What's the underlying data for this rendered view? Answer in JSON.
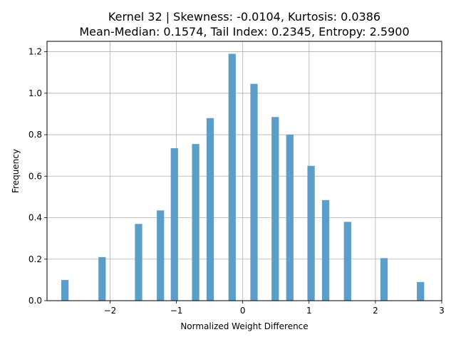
{
  "chart_data": {
    "type": "bar",
    "title": [
      "Kernel 32 | Skewness: -0.0104, Kurtosis: 0.0386",
      "Mean-Median: 0.1574, Tail Index: 0.2345, Entropy: 2.5900"
    ],
    "xlabel": "Normalized Weight Difference",
    "ylabel": "Frequency",
    "xlim": [
      -2.95,
      3.0
    ],
    "ylim": [
      0,
      1.25
    ],
    "xticks": [
      -2,
      -1,
      0,
      1,
      2,
      3
    ],
    "xtick_labels": [
      "−2",
      "−1",
      "0",
      "1",
      "2",
      "3"
    ],
    "yticks": [
      0.0,
      0.2,
      0.4,
      0.6,
      0.8,
      1.0,
      1.2
    ],
    "ytick_labels": [
      "0.0",
      "0.2",
      "0.4",
      "0.6",
      "0.8",
      "1.0",
      "1.2"
    ],
    "grid": true,
    "bar_width": 0.11,
    "bar_color": "#5b9ec9",
    "x": [
      -2.68,
      -2.12,
      -1.57,
      -1.24,
      -1.03,
      -0.71,
      -0.49,
      -0.16,
      0.17,
      0.49,
      0.71,
      1.03,
      1.25,
      1.58,
      2.13,
      2.68
    ],
    "values": [
      0.1,
      0.21,
      0.37,
      0.435,
      0.735,
      0.755,
      0.88,
      1.19,
      1.045,
      0.885,
      0.8,
      0.65,
      0.485,
      0.38,
      0.205,
      0.09
    ]
  }
}
